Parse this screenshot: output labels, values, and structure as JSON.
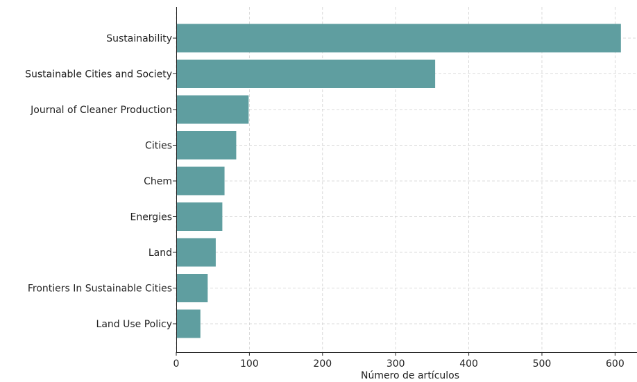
{
  "chart_data": {
    "type": "bar",
    "orientation": "horizontal",
    "categories": [
      "Sustainability",
      "Sustainable Cities and Society",
      "Journal of Cleaner Production",
      "Cities",
      "Chem",
      "Energies",
      "Land",
      "Frontiers In Sustainable Cities",
      "Land Use Policy"
    ],
    "values": [
      608,
      354,
      99,
      82,
      66,
      63,
      54,
      43,
      33
    ],
    "xlabel": "Número de artículos",
    "ylabel": "",
    "title": "",
    "xlim": [
      0,
      630
    ],
    "xticks": [
      0,
      100,
      200,
      300,
      400,
      500,
      600
    ],
    "grid": true,
    "bar_color": "#5f9ea0"
  }
}
